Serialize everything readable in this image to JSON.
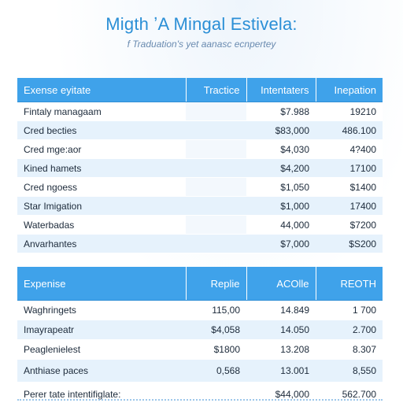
{
  "header": {
    "title": "Migth ʼA Mingal Estivela:",
    "subtitle": "f Traduation's yet aanasc ecnpertey"
  },
  "table1": {
    "columns": [
      "Exense eyitate",
      "Tractice",
      "Intentaters",
      "Inepation"
    ],
    "rows": [
      {
        "label": "Fintaly managaam",
        "c1": "",
        "c2": "$7.988",
        "c3": "19210"
      },
      {
        "label": "Cred becties",
        "c1": "",
        "c2": "$83,000",
        "c3": "486.100"
      },
      {
        "label": "Cred mge:aor",
        "c1": "",
        "c2": "$4,030",
        "c3": "4?400"
      },
      {
        "label": "Kined hamets",
        "c1": "",
        "c2": "$4,200",
        "c3": "17100"
      },
      {
        "label": "Cred ngoess",
        "c1": "",
        "c2": "$1,050",
        "c3": "$1400"
      },
      {
        "label": "Star Imigation",
        "c1": "",
        "c2": "$1,000",
        "c3": "17400"
      },
      {
        "label": "Waterbadas",
        "c1": "",
        "c2": "44,000",
        "c3": "$7200"
      },
      {
        "label": "Anvarhantes",
        "c1": "",
        "c2": "$7,000",
        "c3": "$S200"
      }
    ]
  },
  "table2": {
    "columns": [
      "Expenise",
      "Replie",
      "ACOlle",
      "REOTH"
    ],
    "rows": [
      {
        "label": "Waghringets",
        "c1": "115,00",
        "c2": "14.849",
        "c3": "1 700"
      },
      {
        "label": "Imayrapeatr",
        "c1": "$4,058",
        "c2": "14.050",
        "c3": "2.700"
      },
      {
        "label": "Peaglenielest",
        "c1": "$1800",
        "c2": "13.208",
        "c3": "8.307"
      },
      {
        "label": "Anthiase paces",
        "c1": "0,568",
        "c2": "13.001",
        "c3": "8,550"
      },
      {
        "label": "Perer tate intentifiglate:",
        "c1": "",
        "c2": "$44,000",
        "c3": "562.700"
      }
    ]
  }
}
